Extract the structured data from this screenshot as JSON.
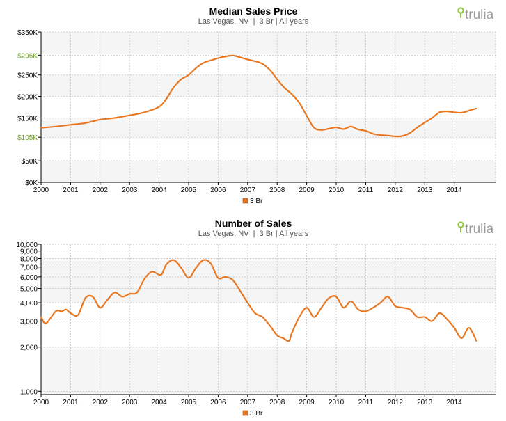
{
  "colors": {
    "line": "#e87722",
    "band": "#f5f5f5",
    "axis": "#000000",
    "grid": "#bbbbbb",
    "highlight_tick": "#6a9a1f",
    "logo_green": "#8cc63f",
    "logo_gray": "#9b9b9b"
  },
  "charts": [
    {
      "title": "Median Sales Price",
      "subtitle": "Las Vegas, NV  |  3 Br | All years",
      "logo": "trulia",
      "logo_icon": "map-pin-icon",
      "legend": "3 Br"
    },
    {
      "title": "Number of Sales",
      "subtitle": "Las Vegas, NV  |  3 Br | All years",
      "logo": "trulia",
      "logo_icon": "map-pin-icon",
      "legend": "3 Br"
    }
  ],
  "chart_data": [
    {
      "type": "line",
      "title": "Median Sales Price",
      "subtitle": "Las Vegas, NV  |  3 Br | All years",
      "x_ticks": [
        "2000",
        "2001",
        "2002",
        "2003",
        "2004",
        "2005",
        "2006",
        "2007",
        "2008",
        "2009",
        "2010",
        "2011",
        "2012",
        "2013",
        "2014"
      ],
      "xlim": [
        2000,
        2015.4
      ],
      "ylim": [
        0,
        350000
      ],
      "y_scale": "linear",
      "y_ticks": [
        {
          "value": 0,
          "label": "$0K"
        },
        {
          "value": 50000,
          "label": "$50K"
        },
        {
          "value": 105000,
          "label": "$105K",
          "highlight": true
        },
        {
          "value": 150000,
          "label": "$150K"
        },
        {
          "value": 200000,
          "label": "$200K"
        },
        {
          "value": 250000,
          "label": "$250K"
        },
        {
          "value": 296000,
          "label": "$296K",
          "highlight": true
        },
        {
          "value": 350000,
          "label": "$350K"
        }
      ],
      "grid": true,
      "legend_position": "bottom",
      "series": [
        {
          "name": "3 Br",
          "x": [
            2000,
            2000.5,
            2001,
            2001.5,
            2002,
            2002.5,
            2003,
            2003.5,
            2004,
            2004.25,
            2004.5,
            2004.75,
            2005,
            2005.25,
            2005.5,
            2005.75,
            2006,
            2006.25,
            2006.5,
            2006.75,
            2007,
            2007.25,
            2007.5,
            2007.75,
            2008,
            2008.25,
            2008.5,
            2008.75,
            2009,
            2009.25,
            2009.5,
            2009.75,
            2010,
            2010.25,
            2010.5,
            2010.75,
            2011,
            2011.25,
            2011.5,
            2011.75,
            2012,
            2012.25,
            2012.5,
            2012.75,
            2013,
            2013.25,
            2013.5,
            2013.75,
            2014,
            2014.25,
            2014.5,
            2014.75
          ],
          "y": [
            127000,
            130000,
            134000,
            138000,
            146000,
            150000,
            156000,
            163000,
            176000,
            195000,
            222000,
            240000,
            250000,
            266000,
            278000,
            284000,
            289000,
            293000,
            295000,
            291000,
            286000,
            282000,
            276000,
            262000,
            240000,
            220000,
            205000,
            185000,
            155000,
            127000,
            122000,
            125000,
            128000,
            124000,
            130000,
            123000,
            120000,
            113000,
            110000,
            109000,
            107000,
            108000,
            115000,
            128000,
            139000,
            150000,
            163000,
            165000,
            163000,
            162000,
            167000,
            172000
          ]
        }
      ]
    },
    {
      "type": "line",
      "title": "Number of Sales",
      "subtitle": "Las Vegas, NV  |  3 Br | All years",
      "x_ticks": [
        "2000",
        "2001",
        "2002",
        "2003",
        "2004",
        "2005",
        "2006",
        "2007",
        "2008",
        "2009",
        "2010",
        "2011",
        "2012",
        "2013",
        "2014"
      ],
      "xlim": [
        2000,
        2015.4
      ],
      "ylim": [
        950,
        10000
      ],
      "y_scale": "log",
      "y_ticks": [
        {
          "value": 1000,
          "label": "1,000"
        },
        {
          "value": 2000,
          "label": "2,000"
        },
        {
          "value": 3000,
          "label": "3,000"
        },
        {
          "value": 4000,
          "label": "4,000"
        },
        {
          "value": 5000,
          "label": "5,000"
        },
        {
          "value": 6000,
          "label": "6,000"
        },
        {
          "value": 7000,
          "label": "7,000"
        },
        {
          "value": 8000,
          "label": "8,000"
        },
        {
          "value": 9000,
          "label": "9,000"
        },
        {
          "value": 10000,
          "label": "10,000"
        }
      ],
      "grid": true,
      "legend_position": "bottom",
      "series": [
        {
          "name": "3 Br",
          "x": [
            2000,
            2000.17,
            2000.5,
            2000.7,
            2000.85,
            2001,
            2001.25,
            2001.5,
            2001.75,
            2002,
            2002.25,
            2002.5,
            2002.75,
            2003,
            2003.25,
            2003.5,
            2003.75,
            2004,
            2004.1,
            2004.25,
            2004.5,
            2004.75,
            2005,
            2005.25,
            2005.5,
            2005.75,
            2006,
            2006.25,
            2006.5,
            2006.75,
            2007,
            2007.25,
            2007.5,
            2007.75,
            2008,
            2008.2,
            2008.4,
            2008.5,
            2008.75,
            2009,
            2009.25,
            2009.5,
            2009.75,
            2010,
            2010.25,
            2010.5,
            2010.75,
            2011,
            2011.25,
            2011.5,
            2011.75,
            2012,
            2012.25,
            2012.5,
            2012.75,
            2013,
            2013.25,
            2013.5,
            2013.75,
            2014,
            2014.25,
            2014.5,
            2014.75
          ],
          "y": [
            3200,
            2900,
            3500,
            3500,
            3600,
            3400,
            3300,
            4300,
            4400,
            3700,
            4200,
            4700,
            4400,
            4600,
            4700,
            5800,
            6500,
            6200,
            6300,
            7300,
            7800,
            6900,
            5900,
            6900,
            7800,
            7400,
            5900,
            6000,
            5700,
            4800,
            4000,
            3400,
            3200,
            2800,
            2400,
            2300,
            2200,
            2500,
            3200,
            3700,
            3200,
            3700,
            4300,
            4400,
            3700,
            4100,
            3600,
            3500,
            3700,
            4000,
            4400,
            3800,
            3700,
            3600,
            3200,
            3200,
            3000,
            3400,
            3100,
            2700,
            2300,
            2700,
            2200
          ]
        }
      ]
    }
  ]
}
